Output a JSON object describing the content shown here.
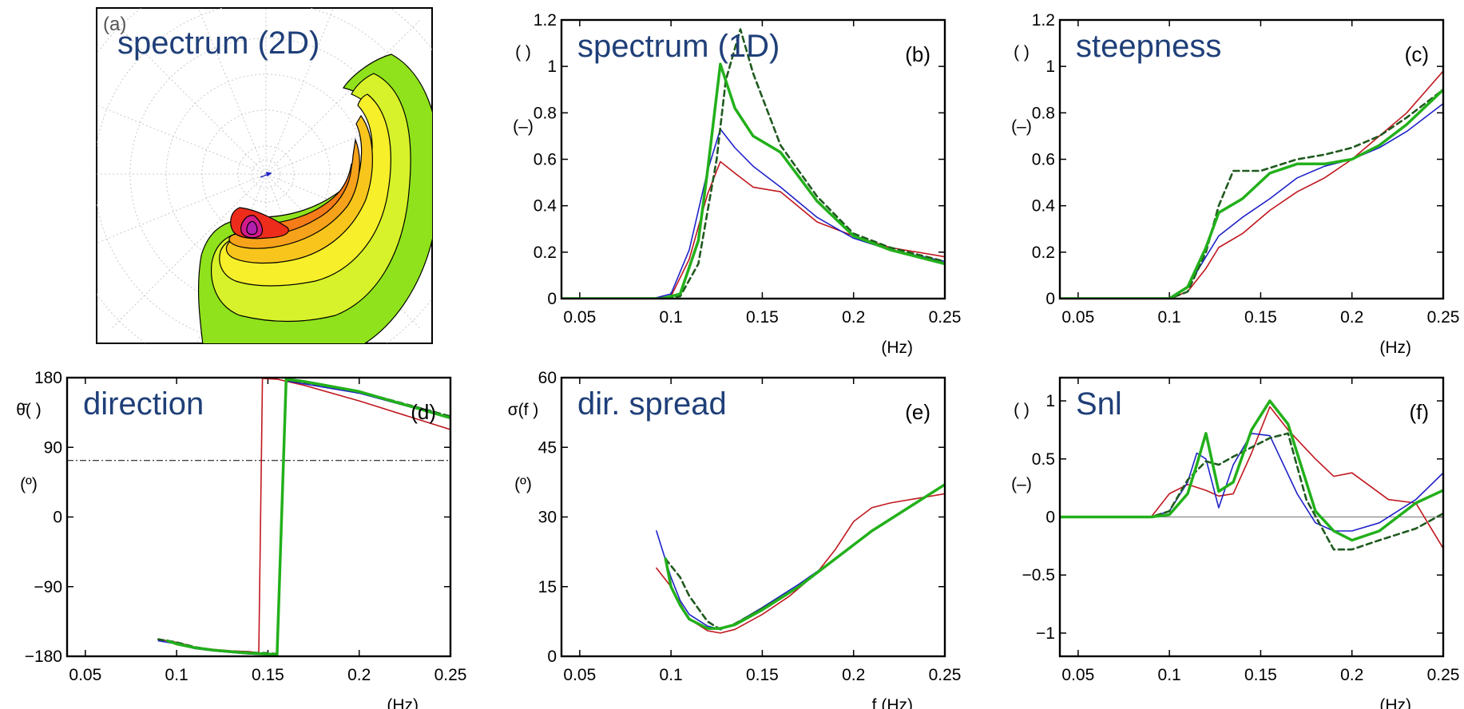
{
  "colors": {
    "green": "#22b01b",
    "darkgreen": "#1f5a1f",
    "blue": "#1f22c8",
    "red": "#c0181f",
    "title": "#1f3f78",
    "axis": "#000000",
    "zero": "#777777"
  },
  "chart_data": [
    {
      "id": "a",
      "type": "contour",
      "title": "spectrum (2D)",
      "panel_tag": "(a)",
      "description_of_visual": "polar directional spectrum, filled contours",
      "levels": [
        "green",
        "yellow",
        "orange",
        "red",
        "magenta"
      ]
    },
    {
      "id": "b",
      "type": "line",
      "title": "spectrum (1D)",
      "panel_tag": "(b)",
      "ylabel_top": "( )",
      "ylabel_bottom": "(–)",
      "xlabel": "(Hz)",
      "xlim": [
        0.04,
        0.25
      ],
      "ylim": [
        0,
        1.2
      ],
      "xticks": [
        0.05,
        0.1,
        0.15,
        0.2,
        0.25
      ],
      "xtick_labels": [
        "0.05",
        "0.1",
        "0.15",
        "0.2",
        "0.25"
      ],
      "yticks": [
        0,
        0.2,
        0.4,
        0.6,
        0.8,
        1,
        1.2
      ],
      "ytick_labels": [
        "0",
        "0.2",
        "0.4",
        "0.6",
        "0.8",
        "1",
        "1.2"
      ],
      "series": [
        {
          "color": "red",
          "width": 1.6,
          "dash": "",
          "x": [
            0.04,
            0.09,
            0.1,
            0.11,
            0.12,
            0.127,
            0.135,
            0.145,
            0.16,
            0.18,
            0.2,
            0.22,
            0.25
          ],
          "y": [
            0,
            0,
            0.01,
            0.17,
            0.45,
            0.59,
            0.54,
            0.48,
            0.46,
            0.33,
            0.27,
            0.22,
            0.18
          ]
        },
        {
          "color": "blue",
          "width": 1.6,
          "dash": "",
          "x": [
            0.04,
            0.09,
            0.1,
            0.11,
            0.12,
            0.127,
            0.135,
            0.145,
            0.16,
            0.18,
            0.2,
            0.22,
            0.25
          ],
          "y": [
            0,
            0,
            0.02,
            0.21,
            0.55,
            0.73,
            0.65,
            0.57,
            0.48,
            0.35,
            0.26,
            0.21,
            0.16
          ]
        },
        {
          "color": "darkgreen",
          "width": 2.6,
          "dash": "7,5",
          "x": [
            0.04,
            0.095,
            0.105,
            0.115,
            0.125,
            0.13,
            0.138,
            0.145,
            0.16,
            0.18,
            0.2,
            0.22,
            0.25
          ],
          "y": [
            0,
            0,
            0.01,
            0.15,
            0.6,
            0.94,
            1.16,
            0.97,
            0.66,
            0.44,
            0.28,
            0.22,
            0.16
          ]
        },
        {
          "color": "green",
          "width": 3.5,
          "dash": "",
          "x": [
            0.04,
            0.095,
            0.105,
            0.115,
            0.12,
            0.127,
            0.135,
            0.145,
            0.16,
            0.18,
            0.2,
            0.22,
            0.25
          ],
          "y": [
            0,
            0,
            0.02,
            0.25,
            0.55,
            1.01,
            0.82,
            0.7,
            0.63,
            0.42,
            0.27,
            0.21,
            0.15
          ]
        }
      ]
    },
    {
      "id": "c",
      "type": "line",
      "title": "steepness",
      "panel_tag": "(c)",
      "ylabel_top": "( )",
      "ylabel_bottom": "(–)",
      "xlabel": "(Hz)",
      "xlim": [
        0.04,
        0.25
      ],
      "ylim": [
        0,
        1.2
      ],
      "xticks": [
        0.05,
        0.1,
        0.15,
        0.2,
        0.25
      ],
      "xtick_labels": [
        "0.05",
        "0.1",
        "0.15",
        "0.2",
        "0.25"
      ],
      "yticks": [
        0,
        0.2,
        0.4,
        0.6,
        0.8,
        1,
        1.2
      ],
      "ytick_labels": [
        "0",
        "0.2",
        "0.4",
        "0.6",
        "0.8",
        "1",
        "1.2"
      ],
      "series": [
        {
          "color": "red",
          "width": 1.6,
          "dash": "",
          "x": [
            0.04,
            0.1,
            0.11,
            0.12,
            0.127,
            0.14,
            0.155,
            0.17,
            0.185,
            0.2,
            0.215,
            0.23,
            0.25
          ],
          "y": [
            0,
            0,
            0.03,
            0.13,
            0.22,
            0.28,
            0.38,
            0.46,
            0.52,
            0.6,
            0.7,
            0.8,
            0.98
          ]
        },
        {
          "color": "blue",
          "width": 1.6,
          "dash": "",
          "x": [
            0.04,
            0.1,
            0.11,
            0.12,
            0.127,
            0.14,
            0.155,
            0.17,
            0.185,
            0.2,
            0.215,
            0.23,
            0.25
          ],
          "y": [
            0,
            0,
            0.05,
            0.18,
            0.27,
            0.35,
            0.43,
            0.52,
            0.57,
            0.6,
            0.65,
            0.72,
            0.84
          ]
        },
        {
          "color": "darkgreen",
          "width": 2.6,
          "dash": "7,5",
          "x": [
            0.04,
            0.1,
            0.11,
            0.12,
            0.127,
            0.135,
            0.15,
            0.17,
            0.185,
            0.2,
            0.215,
            0.23,
            0.25
          ],
          "y": [
            0,
            0,
            0.03,
            0.2,
            0.4,
            0.55,
            0.55,
            0.6,
            0.62,
            0.65,
            0.7,
            0.78,
            0.9
          ]
        },
        {
          "color": "green",
          "width": 3.5,
          "dash": "",
          "x": [
            0.04,
            0.1,
            0.11,
            0.12,
            0.127,
            0.14,
            0.155,
            0.17,
            0.185,
            0.2,
            0.215,
            0.23,
            0.25
          ],
          "y": [
            0,
            0,
            0.05,
            0.22,
            0.37,
            0.43,
            0.54,
            0.58,
            0.58,
            0.6,
            0.66,
            0.75,
            0.9
          ]
        }
      ]
    },
    {
      "id": "d",
      "type": "line",
      "title": "direction",
      "panel_tag": "(d)",
      "ylabel_top": "θ̄( )",
      "ylabel_bottom": "(º)",
      "xlabel": "(Hz)",
      "xlim": [
        0.04,
        0.25
      ],
      "ylim": [
        -180,
        180
      ],
      "xticks": [
        0.05,
        0.1,
        0.15,
        0.2,
        0.25
      ],
      "xtick_labels": [
        "0.05",
        "0.1",
        "0.15",
        "0.2",
        "0.25"
      ],
      "yticks": [
        -180,
        -90,
        0,
        90,
        180
      ],
      "ytick_labels": [
        "−180",
        "−90",
        "0",
        "90",
        "180"
      ],
      "hline": {
        "y": 73,
        "style": "dashdot"
      },
      "series": [
        {
          "color": "red",
          "width": 1.6,
          "dash": "",
          "x": [
            0.09,
            0.1,
            0.11,
            0.12,
            0.13,
            0.14,
            0.145,
            0.147,
            0.155,
            0.17,
            0.2,
            0.25
          ],
          "y": [
            -158,
            -162,
            -168,
            -171,
            -173,
            -174,
            -176,
            179,
            178,
            170,
            150,
            113
          ]
        },
        {
          "color": "blue",
          "width": 1.6,
          "dash": "",
          "x": [
            0.09,
            0.1,
            0.11,
            0.12,
            0.13,
            0.14,
            0.15,
            0.155,
            0.16,
            0.17,
            0.2,
            0.25
          ],
          "y": [
            -160,
            -164,
            -170,
            -173,
            -175,
            -177,
            -178,
            -179,
            176,
            172,
            160,
            128
          ]
        },
        {
          "color": "darkgreen",
          "width": 2.6,
          "dash": "7,5",
          "x": [
            0.09,
            0.1,
            0.11,
            0.12,
            0.13,
            0.14,
            0.15,
            0.155,
            0.16,
            0.17,
            0.2,
            0.25
          ],
          "y": [
            -158,
            -162,
            -168,
            -172,
            -174,
            -175,
            -176,
            -177,
            177,
            174,
            162,
            130
          ]
        },
        {
          "color": "green",
          "width": 3.5,
          "dash": "",
          "x": [
            0.095,
            0.1,
            0.11,
            0.12,
            0.13,
            0.14,
            0.15,
            0.155,
            0.16,
            0.17,
            0.2,
            0.25
          ],
          "y": [
            -160,
            -164,
            -169,
            -172,
            -174,
            -176,
            -177,
            -178,
            178,
            175,
            162,
            128
          ]
        }
      ]
    },
    {
      "id": "e",
      "type": "line",
      "title": "dir. spread",
      "panel_tag": "(e)",
      "ylabel_top": "σ(f )",
      "ylabel_bottom": "(º)",
      "xlabel": "f (Hz)",
      "xlim": [
        0.04,
        0.25
      ],
      "ylim": [
        0,
        60
      ],
      "xticks": [
        0.05,
        0.1,
        0.15,
        0.2,
        0.25
      ],
      "xtick_labels": [
        "0.05",
        "0.1",
        "0.15",
        "0.2",
        "0.25"
      ],
      "yticks": [
        0,
        15,
        30,
        45,
        60
      ],
      "ytick_labels": [
        "0",
        "15",
        "30",
        "45",
        "60"
      ],
      "series": [
        {
          "color": "red",
          "width": 1.6,
          "dash": "",
          "x": [
            0.092,
            0.1,
            0.11,
            0.12,
            0.127,
            0.135,
            0.15,
            0.165,
            0.18,
            0.19,
            0.2,
            0.21,
            0.22,
            0.25
          ],
          "y": [
            19,
            15,
            8,
            5.5,
            5,
            5.8,
            9,
            13,
            18,
            23,
            29,
            32,
            33,
            35
          ]
        },
        {
          "color": "blue",
          "width": 1.6,
          "dash": "",
          "x": [
            0.092,
            0.1,
            0.105,
            0.11,
            0.12,
            0.127,
            0.135,
            0.15,
            0.17,
            0.19,
            0.21,
            0.23,
            0.25
          ],
          "y": [
            27,
            17,
            12,
            9,
            6.5,
            5.8,
            7,
            10.5,
            15.5,
            21,
            27,
            32,
            37
          ]
        },
        {
          "color": "darkgreen",
          "width": 2.6,
          "dash": "7,5",
          "x": [
            0.097,
            0.1,
            0.105,
            0.11,
            0.12,
            0.127,
            0.135,
            0.15,
            0.17,
            0.19,
            0.21,
            0.23,
            0.25
          ],
          "y": [
            21,
            19.5,
            17,
            13,
            7.5,
            5.8,
            7,
            10.3,
            15,
            21,
            27,
            32,
            37
          ]
        },
        {
          "color": "green",
          "width": 3.5,
          "dash": "",
          "x": [
            0.097,
            0.1,
            0.105,
            0.11,
            0.12,
            0.127,
            0.135,
            0.15,
            0.17,
            0.19,
            0.21,
            0.23,
            0.25
          ],
          "y": [
            21,
            15,
            11,
            8,
            6,
            6,
            6.8,
            10,
            15,
            21,
            27,
            32,
            37
          ]
        }
      ]
    },
    {
      "id": "f",
      "type": "line",
      "title": "Snl",
      "panel_tag": "(f)",
      "ylabel_top": "( )",
      "ylabel_bottom": "(–)",
      "xlabel": "(Hz)",
      "xlim": [
        0.04,
        0.25
      ],
      "ylim": [
        -1.2,
        1.2
      ],
      "xticks": [
        0.05,
        0.1,
        0.15,
        0.2,
        0.25
      ],
      "xtick_labels": [
        "0.05",
        "0.1",
        "0.15",
        "0.2",
        "0.25"
      ],
      "yticks": [
        -1,
        -0.5,
        0,
        0.5,
        1
      ],
      "ytick_labels": [
        "−1",
        "−0.5",
        "0",
        "0.5",
        "1"
      ],
      "hline": {
        "y": 0,
        "style": "solid"
      },
      "series": [
        {
          "color": "red",
          "width": 1.6,
          "dash": "",
          "x": [
            0.04,
            0.09,
            0.1,
            0.11,
            0.12,
            0.127,
            0.135,
            0.145,
            0.155,
            0.165,
            0.18,
            0.19,
            0.2,
            0.22,
            0.235,
            0.25
          ],
          "y": [
            0,
            0,
            0.2,
            0.28,
            0.23,
            0.18,
            0.2,
            0.55,
            0.95,
            0.75,
            0.5,
            0.35,
            0.38,
            0.15,
            0.12,
            -0.27
          ]
        },
        {
          "color": "blue",
          "width": 1.6,
          "dash": "",
          "x": [
            0.04,
            0.09,
            0.1,
            0.11,
            0.115,
            0.12,
            0.127,
            0.135,
            0.145,
            0.155,
            0.17,
            0.18,
            0.19,
            0.2,
            0.215,
            0.235,
            0.25
          ],
          "y": [
            0,
            0,
            0.05,
            0.3,
            0.55,
            0.5,
            0.08,
            0.45,
            0.72,
            0.7,
            0.2,
            -0.05,
            -0.12,
            -0.12,
            -0.05,
            0.15,
            0.38
          ]
        },
        {
          "color": "darkgreen",
          "width": 2.6,
          "dash": "7,5",
          "x": [
            0.04,
            0.09,
            0.1,
            0.11,
            0.12,
            0.127,
            0.135,
            0.145,
            0.155,
            0.165,
            0.175,
            0.19,
            0.2,
            0.215,
            0.235,
            0.25
          ],
          "y": [
            0,
            0,
            0.05,
            0.32,
            0.48,
            0.45,
            0.52,
            0.6,
            0.68,
            0.72,
            0.15,
            -0.28,
            -0.28,
            -0.2,
            -0.1,
            0.03
          ]
        },
        {
          "color": "green",
          "width": 3.5,
          "dash": "",
          "x": [
            0.04,
            0.09,
            0.1,
            0.11,
            0.115,
            0.12,
            0.127,
            0.135,
            0.145,
            0.155,
            0.165,
            0.18,
            0.19,
            0.2,
            0.215,
            0.235,
            0.25
          ],
          "y": [
            0,
            0,
            0.02,
            0.2,
            0.45,
            0.72,
            0.22,
            0.3,
            0.75,
            1.0,
            0.8,
            0.05,
            -0.12,
            -0.2,
            -0.12,
            0.12,
            0.23
          ]
        }
      ]
    }
  ]
}
